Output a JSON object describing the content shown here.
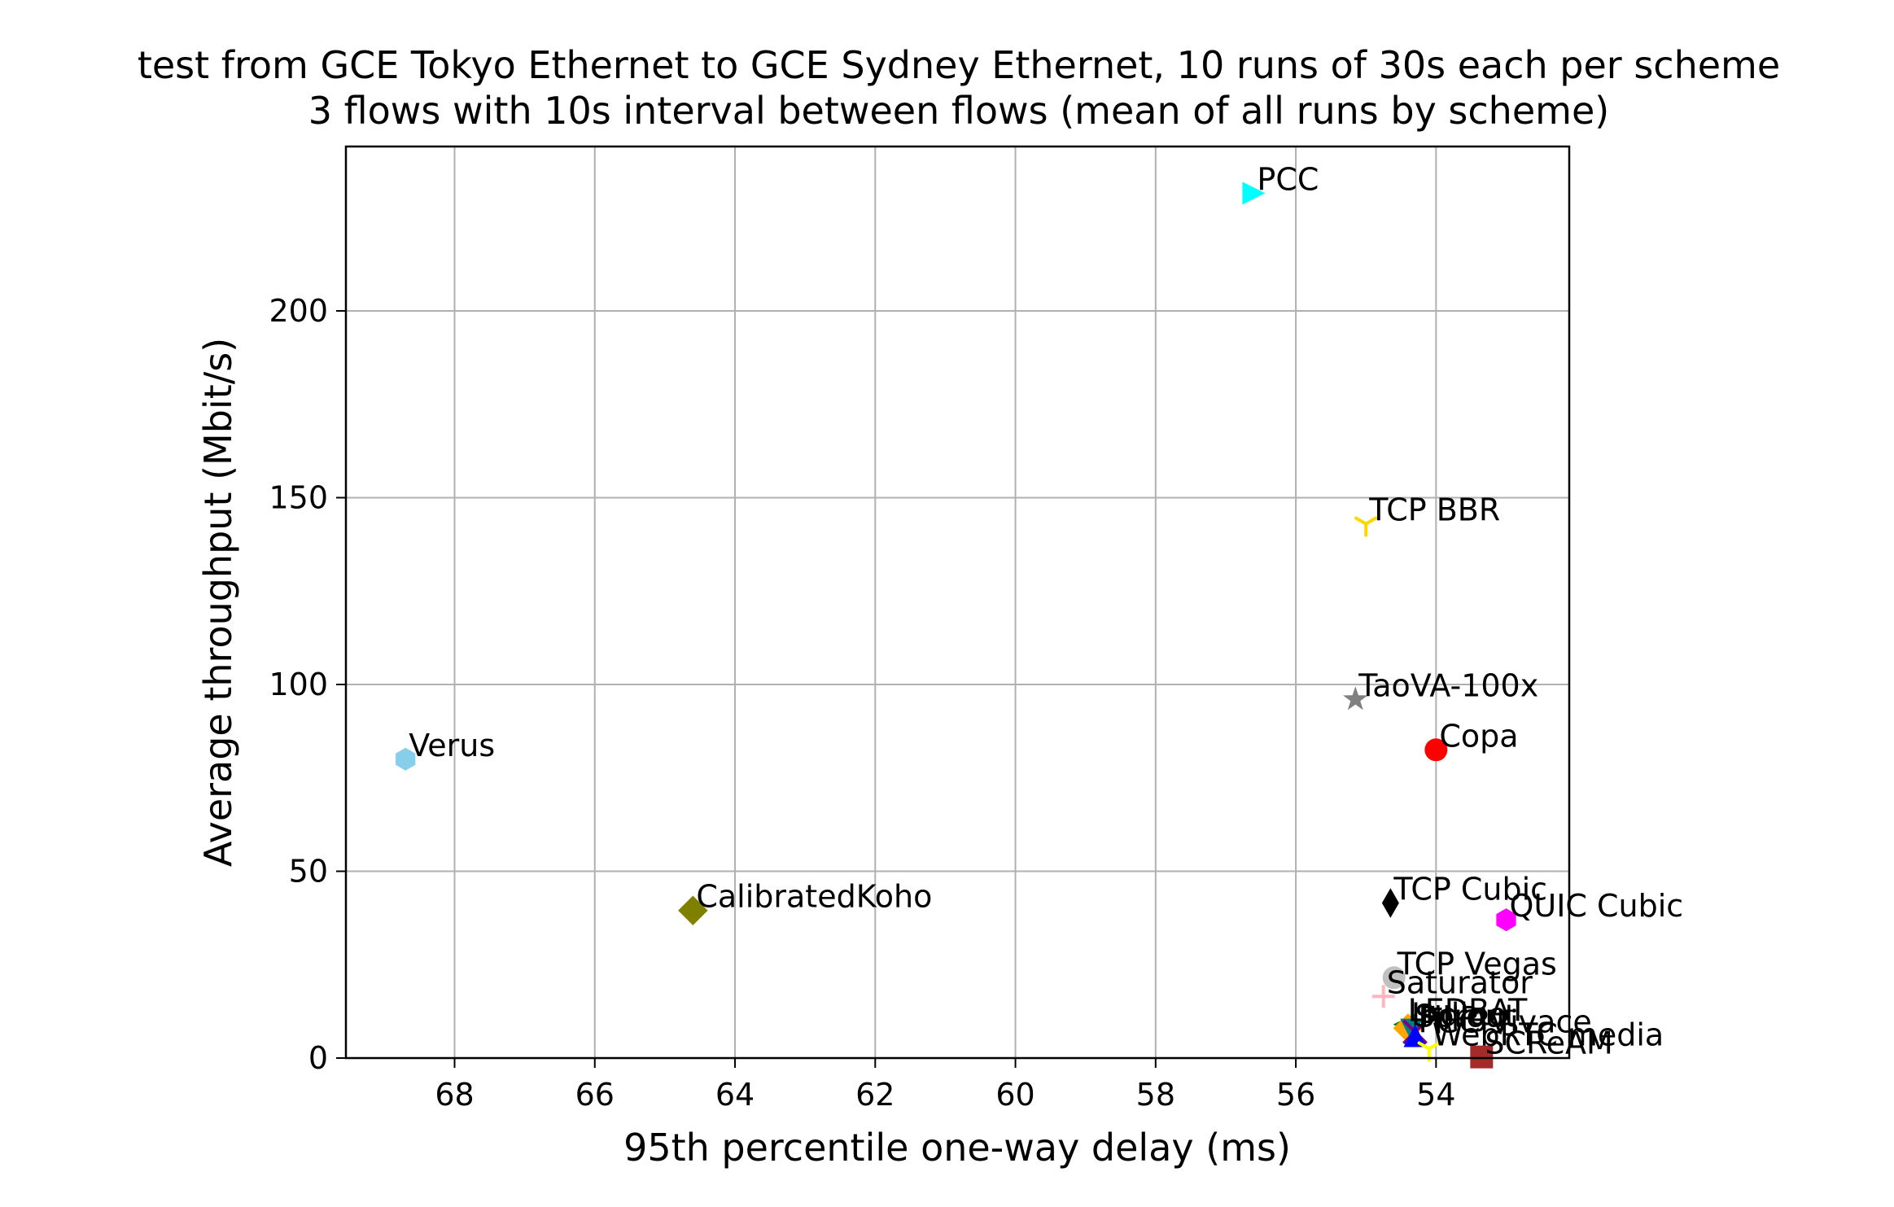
{
  "chart_data": {
    "type": "scatter",
    "title": [
      "test from GCE Tokyo Ethernet to GCE Sydney Ethernet, 10 runs of 30s each per scheme",
      "3 flows with 10s interval between flows (mean of all runs by scheme)"
    ],
    "xlabel": "95th percentile one-way delay (ms)",
    "ylabel": "Average throughput (Mbit/s)",
    "x_inverted": true,
    "xlim": [
      69.55,
      52.1
    ],
    "ylim": [
      0,
      244
    ],
    "x_ticks": [
      68,
      66,
      64,
      62,
      60,
      58,
      56,
      54
    ],
    "y_ticks": [
      0,
      50,
      100,
      150,
      200
    ],
    "grid": true,
    "points": [
      {
        "label": "PCC",
        "x": 56.6,
        "y": 231.5,
        "color": "#00ffff",
        "marker": "triangle-right"
      },
      {
        "label": "TCP BBR",
        "x": 55.0,
        "y": 143.0,
        "color": "#ffd700",
        "marker": "tri-down"
      },
      {
        "label": "TaoVA-100x",
        "x": 55.15,
        "y": 96.0,
        "color": "#808080",
        "marker": "star"
      },
      {
        "label": "Copa",
        "x": 54.0,
        "y": 82.5,
        "color": "#ff0000",
        "marker": "circle"
      },
      {
        "label": "Verus",
        "x": 68.7,
        "y": 80.0,
        "color": "#87ceeb",
        "marker": "hexagon"
      },
      {
        "label": "TCP Cubic",
        "x": 54.65,
        "y": 41.5,
        "color": "#000000",
        "marker": "thin-diamond"
      },
      {
        "label": "CalibratedKoho",
        "x": 64.6,
        "y": 39.5,
        "color": "#808000",
        "marker": "diamond"
      },
      {
        "label": "QUIC Cubic",
        "x": 53.0,
        "y": 37.0,
        "color": "#ff00ff",
        "marker": "hexagon"
      },
      {
        "label": "TCP Vegas",
        "x": 54.6,
        "y": 21.5,
        "color": "#c0c0c0",
        "marker": "circle"
      },
      {
        "label": "Saturator",
        "x": 54.75,
        "y": 16.5,
        "color": "#ffb6c1",
        "marker": "plus"
      },
      {
        "label": "LEDBAT",
        "x": 54.45,
        "y": 9.0,
        "color": "#008000",
        "marker": "triangle-left"
      },
      {
        "label": "Indigo",
        "x": 54.4,
        "y": 8.0,
        "color": "#ffa500",
        "marker": "diamond"
      },
      {
        "label": "Sprout",
        "x": 54.35,
        "y": 7.5,
        "color": "#008080",
        "marker": "triangle-down"
      },
      {
        "label": "FillP",
        "x": 54.3,
        "y": 7.0,
        "color": "#800080",
        "marker": "x"
      },
      {
        "label": "PCC-Vivace",
        "x": 54.3,
        "y": 6.0,
        "color": "#0000ff",
        "marker": "triangle-up"
      },
      {
        "label": "WebRTC media",
        "x": 54.1,
        "y": 2.5,
        "color": "#ffff00",
        "marker": "tri-down"
      },
      {
        "label": "SCReAM",
        "x": 53.35,
        "y": 0.3,
        "color": "#a52a2a",
        "marker": "square"
      }
    ]
  }
}
